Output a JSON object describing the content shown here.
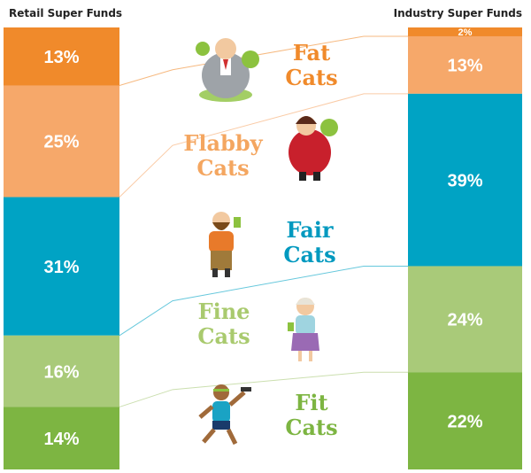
{
  "chart_data": {
    "type": "bar",
    "columns": [
      {
        "name": "Retail Super Funds",
        "values": [
          13,
          25,
          31,
          16,
          14
        ]
      },
      {
        "name": "Industry Super Funds",
        "values": [
          2,
          13,
          39,
          24,
          22
        ]
      }
    ],
    "categories": [
      {
        "line1": "Fat",
        "line2": "Cats",
        "text_color": "#f08a2b"
      },
      {
        "line1": "Flabby",
        "line2": "Cats",
        "text_color": "#f4a660"
      },
      {
        "line1": "Fair",
        "line2": "Cats",
        "text_color": "#0099bf"
      },
      {
        "line1": "Fine",
        "line2": "Cats",
        "text_color": "#a9ca6e"
      },
      {
        "line1": "Fit",
        "line2": "Cats",
        "text_color": "#7db542"
      }
    ],
    "segment_colors": [
      "#f08a2b",
      "#f6a86a",
      "#00a3c4",
      "#a9ca79",
      "#7db542"
    ],
    "value_suffix": "%",
    "icons": [
      "fat-cat-icon",
      "flabby-cat-icon",
      "fair-cat-icon",
      "fine-cat-icon",
      "fit-cat-icon"
    ]
  }
}
